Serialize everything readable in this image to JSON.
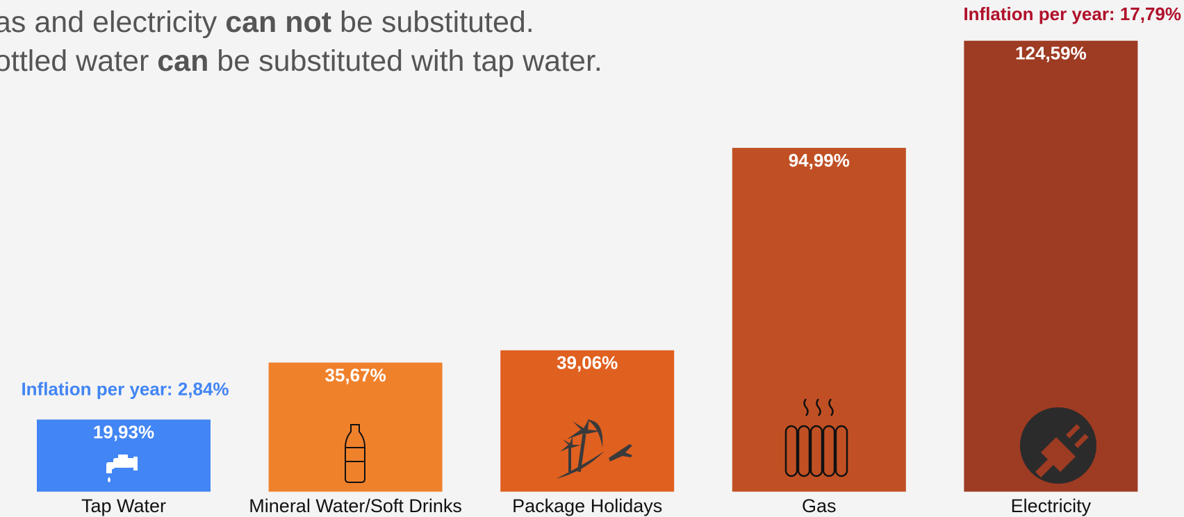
{
  "chart_data": {
    "type": "bar",
    "subtitle": [
      [
        "as and electricity ",
        "can not",
        " be substituted."
      ],
      [
        "ottled water ",
        "can",
        " be substituted with tap water."
      ]
    ],
    "categories": [
      "Tap Water",
      "Mineral Water/Soft Drinks",
      "Package Holidays",
      "Gas",
      "Electricity"
    ],
    "values": [
      19.93,
      35.67,
      39.06,
      94.99,
      124.59
    ],
    "value_labels": [
      "19,93%",
      "35,67%",
      "39,06%",
      "94,99%",
      "124,59%"
    ],
    "colors": [
      "#4285f4",
      "#f0812b",
      "#e0601f",
      "#c05024",
      "#9e3b23"
    ],
    "annotations": [
      {
        "text": "Inflation per year: 2,84%",
        "color": "#4285f4"
      },
      {
        "text": "Inflation per year: 17,79%",
        "color": "#b0102a"
      }
    ]
  }
}
